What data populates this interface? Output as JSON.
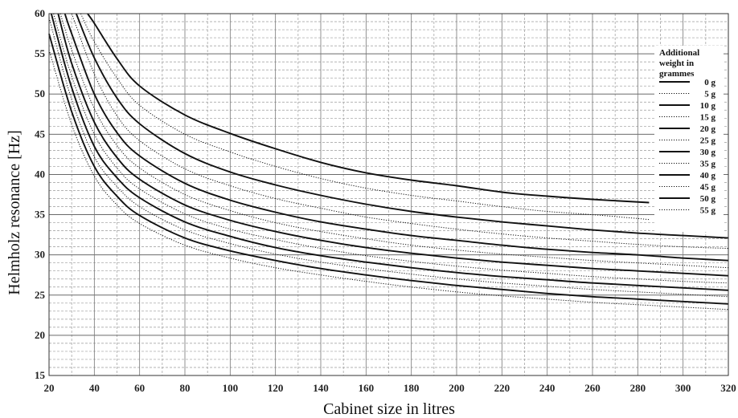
{
  "chart_data": {
    "type": "line",
    "title": "",
    "xlabel": "Cabinet size in litres",
    "ylabel": "Helmholz resonance [Hz]",
    "xlim": [
      20,
      320
    ],
    "ylim": [
      15,
      60
    ],
    "x_ticks": [
      "20",
      "40",
      "60",
      "80",
      "100",
      "120",
      "140",
      "160",
      "180",
      "200",
      "220",
      "240",
      "260",
      "280",
      "300",
      "320"
    ],
    "y_ticks": [
      "15",
      "20",
      "25",
      "30",
      "35",
      "40",
      "45",
      "50",
      "55",
      "60"
    ],
    "grid": true,
    "legend": {
      "title_lines": [
        "Additional",
        "weight in",
        "grammes"
      ],
      "placement": "right"
    },
    "series": [
      {
        "name": "0 g",
        "style": "solid",
        "x": [
          37,
          40,
          50,
          60,
          80,
          100,
          120,
          140,
          160,
          180,
          200,
          220,
          240,
          260,
          285
        ],
        "y": [
          60,
          58.8,
          54.4,
          51.0,
          47.4,
          45.1,
          43.2,
          41.5,
          40.2,
          39.3,
          38.6,
          37.8,
          37.3,
          36.9,
          36.5
        ]
      },
      {
        "name": "5 g",
        "style": "dotted",
        "x": [
          34,
          40,
          50,
          60,
          80,
          100,
          120,
          140,
          160,
          180,
          200,
          220,
          240,
          260,
          285
        ],
        "y": [
          60,
          56.5,
          52.0,
          48.6,
          45.0,
          42.8,
          41.0,
          39.5,
          38.3,
          37.4,
          36.7,
          36.0,
          35.4,
          35.0,
          34.4
        ]
      },
      {
        "name": "10 g",
        "style": "solid",
        "x": [
          32,
          40,
          50,
          60,
          80,
          100,
          120,
          140,
          160,
          180,
          200,
          220,
          240,
          260,
          280,
          300,
          320
        ],
        "y": [
          60,
          54.5,
          49.5,
          46.3,
          42.6,
          40.3,
          38.7,
          37.4,
          36.3,
          35.4,
          34.7,
          34.1,
          33.6,
          33.1,
          32.7,
          32.4,
          32.1
        ]
      },
      {
        "name": "15 g",
        "style": "dotted",
        "x": [
          30,
          40,
          50,
          60,
          80,
          100,
          120,
          140,
          160,
          180,
          200,
          220,
          240,
          260,
          280,
          300,
          320
        ],
        "y": [
          60,
          52.5,
          47.3,
          44.2,
          40.7,
          38.6,
          37.0,
          35.8,
          34.7,
          33.9,
          33.2,
          32.6,
          32.1,
          31.7,
          31.3,
          31.0,
          30.8
        ]
      },
      {
        "name": "20 g",
        "style": "solid",
        "x": [
          27,
          30,
          40,
          50,
          60,
          80,
          100,
          120,
          140,
          160,
          180,
          200,
          220,
          240,
          260,
          280,
          300,
          320
        ],
        "y": [
          60,
          57.5,
          50.0,
          45.2,
          42.3,
          38.9,
          36.8,
          35.3,
          34.1,
          33.2,
          32.4,
          31.8,
          31.2,
          30.7,
          30.3,
          30.0,
          29.6,
          29.3
        ]
      },
      {
        "name": "25 g",
        "style": "dotted",
        "x": [
          25,
          30,
          40,
          50,
          60,
          80,
          100,
          120,
          140,
          160,
          180,
          200,
          220,
          240,
          260,
          280,
          300,
          320
        ],
        "y": [
          60,
          55.5,
          48.2,
          43.6,
          40.8,
          37.5,
          35.5,
          34.0,
          32.9,
          32.0,
          31.2,
          30.6,
          30.1,
          29.7,
          29.3,
          29.0,
          28.7,
          28.4
        ]
      },
      {
        "name": "30 g",
        "style": "solid",
        "x": [
          24,
          30,
          40,
          50,
          60,
          80,
          100,
          120,
          140,
          160,
          180,
          200,
          220,
          240,
          260,
          280,
          300,
          320
        ],
        "y": [
          60,
          53.8,
          46.5,
          42.1,
          39.4,
          36.2,
          34.3,
          32.9,
          31.8,
          30.9,
          30.2,
          29.6,
          29.1,
          28.7,
          28.3,
          28.0,
          27.7,
          27.4
        ]
      },
      {
        "name": "35 g",
        "style": "dotted",
        "x": [
          22,
          30,
          40,
          50,
          60,
          80,
          100,
          120,
          140,
          160,
          180,
          200,
          220,
          240,
          260,
          280,
          300,
          320
        ],
        "y": [
          60,
          52.2,
          45.0,
          40.8,
          38.2,
          35.1,
          33.2,
          31.9,
          30.8,
          29.9,
          29.2,
          28.6,
          28.1,
          27.7,
          27.3,
          27.0,
          26.7,
          26.5
        ]
      },
      {
        "name": "40 g",
        "style": "solid",
        "x": [
          21,
          30,
          40,
          50,
          60,
          80,
          100,
          120,
          140,
          160,
          180,
          200,
          220,
          240,
          260,
          280,
          300,
          320
        ],
        "y": [
          60,
          50.8,
          43.5,
          39.6,
          37.1,
          34.1,
          32.3,
          30.9,
          29.9,
          29.1,
          28.4,
          27.8,
          27.3,
          26.9,
          26.5,
          26.2,
          25.9,
          25.6
        ]
      },
      {
        "name": "45 g",
        "style": "dotted",
        "x": [
          20,
          30,
          40,
          50,
          60,
          80,
          100,
          120,
          140,
          160,
          180,
          200,
          220,
          240,
          260,
          280,
          300,
          320
        ],
        "y": [
          59.5,
          49.3,
          42.2,
          38.5,
          36.0,
          33.1,
          31.4,
          30.1,
          29.1,
          28.3,
          27.6,
          27.0,
          26.5,
          26.1,
          25.7,
          25.4,
          25.1,
          24.8
        ]
      },
      {
        "name": "50 g",
        "style": "solid",
        "x": [
          20,
          30,
          40,
          50,
          60,
          80,
          100,
          120,
          140,
          160,
          180,
          200,
          220,
          240,
          260,
          280,
          300,
          320
        ],
        "y": [
          57.5,
          47.8,
          41.0,
          37.3,
          34.9,
          32.1,
          30.5,
          29.3,
          28.3,
          27.5,
          26.8,
          26.2,
          25.7,
          25.2,
          24.8,
          24.5,
          24.2,
          23.9
        ]
      },
      {
        "name": "55 g",
        "style": "dotted",
        "x": [
          20,
          30,
          40,
          50,
          60,
          80,
          100,
          120,
          140,
          160,
          180,
          200,
          220,
          240,
          260,
          280,
          300,
          320
        ],
        "y": [
          55.5,
          46.2,
          39.8,
          36.2,
          33.9,
          31.2,
          29.6,
          28.4,
          27.5,
          26.7,
          26.0,
          25.4,
          24.9,
          24.5,
          24.1,
          23.8,
          23.5,
          23.2
        ]
      }
    ]
  }
}
